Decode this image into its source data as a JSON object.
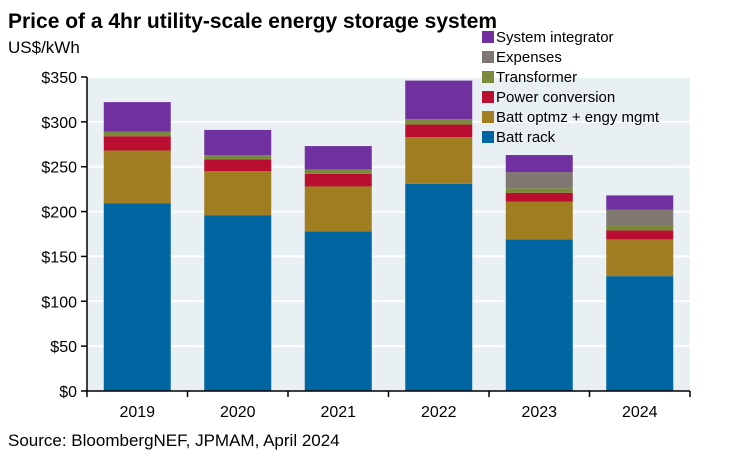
{
  "chart_data": {
    "type": "bar",
    "stacked": true,
    "title": "Price of a 4hr utility-scale energy storage system",
    "ylabel": "US$/kWh",
    "xlabel": "",
    "source": "Source: BloombergNEF, JPMAM, April 2024",
    "categories": [
      "2019",
      "2020",
      "2021",
      "2022",
      "2023",
      "2024"
    ],
    "ylim": [
      0,
      350
    ],
    "yticks": [
      0,
      50,
      100,
      150,
      200,
      250,
      300,
      350
    ],
    "ytick_labels": [
      "$0",
      "$50",
      "$100",
      "$150",
      "$200",
      "$250",
      "$300",
      "$350"
    ],
    "grid": true,
    "legend_position": "top-right",
    "series": [
      {
        "name": "Batt rack",
        "color": "#0066a1",
        "values": [
          209,
          196,
          178,
          231,
          169,
          128
        ]
      },
      {
        "name": "Batt optmz + engy mgmt",
        "color": "#a07d20",
        "values": [
          59,
          49,
          50,
          52,
          42,
          41
        ]
      },
      {
        "name": "Power conversion",
        "color": "#b90e30",
        "values": [
          16,
          13,
          14,
          14,
          10,
          10
        ]
      },
      {
        "name": "Transformer",
        "color": "#7a8a3a",
        "values": [
          5,
          5,
          5,
          6,
          5,
          5
        ]
      },
      {
        "name": "Expenses",
        "color": "#7f7872",
        "values": [
          0,
          0,
          0,
          0,
          18,
          18
        ]
      },
      {
        "name": "System integrator",
        "color": "#7030a0",
        "values": [
          33,
          28,
          26,
          43,
          19,
          16
        ]
      }
    ]
  }
}
